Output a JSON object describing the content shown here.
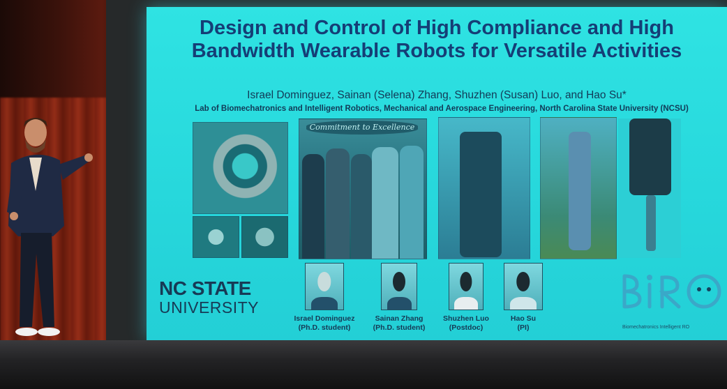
{
  "slide": {
    "title_line1": "Design and Control of High Compliance and High",
    "title_line2": "Bandwidth Wearable Robots for Versatile Activities",
    "authors": "Israel Dominguez, Sainan (Selena) Zhang, Shuzhen (Susan) Luo, and Hao Su*",
    "affiliation": "Lab of Biomechatronics and Intelligent Robotics, Mechanical and Aerospace Engineering, North Carolina State University (NCSU)",
    "team_banner": "Commitment to Excellence",
    "university_line1": "NC STATE",
    "university_line2": "UNIVERSITY",
    "members": [
      {
        "name": "Israel Dominguez",
        "role": "(Ph.D. student)"
      },
      {
        "name": "Sainan Zhang",
        "role": "(Ph.D. student)"
      },
      {
        "name": "Shuzhen Luo",
        "role": "(Postdoc)"
      },
      {
        "name": "Hao Su",
        "role": "(PI)"
      }
    ],
    "lab_logo": "BIRO",
    "lab_logo_caption": "Biomechatronics Intelligent RO"
  },
  "colors": {
    "slide_bg": "#2fe3e3",
    "title": "#153e76",
    "text": "#123a57"
  }
}
